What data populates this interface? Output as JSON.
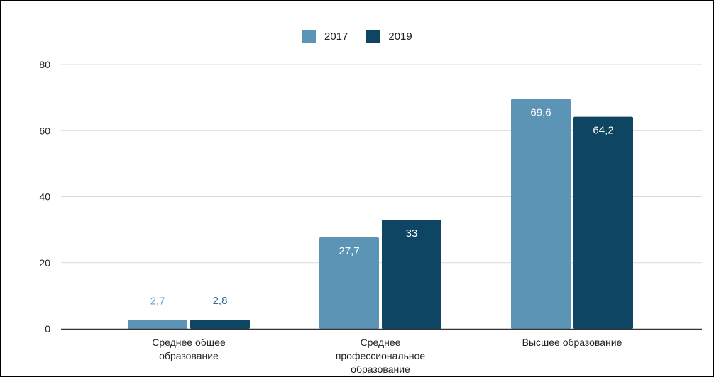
{
  "colors": {
    "series_2017": "#5b94b5",
    "series_2019": "#0d4562",
    "grid": "#d9d9d9",
    "axis": "#333333",
    "text": "#222222"
  },
  "chart_data": {
    "type": "bar",
    "categories": [
      [
        "Среднее общее",
        "образование"
      ],
      [
        "Среднее",
        "профессиональное",
        "образование"
      ],
      [
        "Высшее образование"
      ]
    ],
    "series": [
      {
        "name": "2017",
        "values": [
          2.7,
          27.7,
          69.6
        ],
        "labels": [
          "2,7",
          "27,7",
          "69,6"
        ]
      },
      {
        "name": "2019",
        "values": [
          2.8,
          33,
          64.2
        ],
        "labels": [
          "2,8",
          "33",
          "64,2"
        ]
      }
    ],
    "yticks": [
      "0",
      "20",
      "40",
      "60",
      "80"
    ],
    "ylim": [
      0,
      80
    ],
    "grid": true,
    "legend": "top-center",
    "title": "",
    "xlabel": "",
    "ylabel": ""
  }
}
